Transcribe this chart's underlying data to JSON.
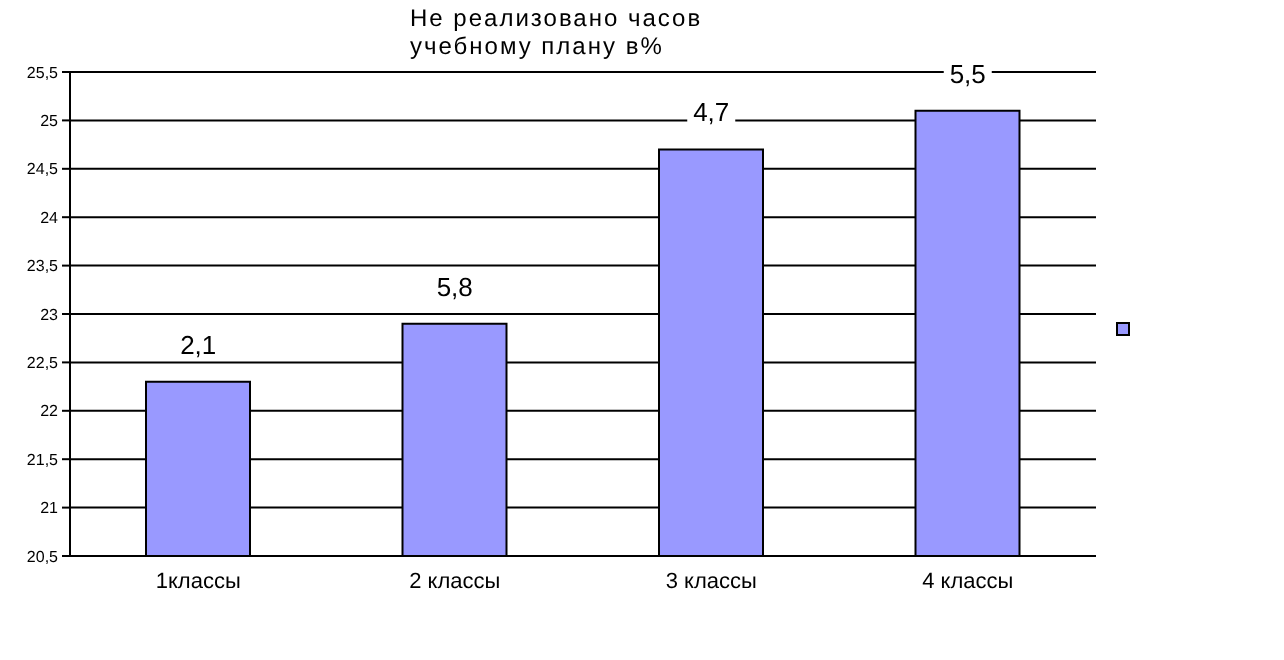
{
  "chart_data": {
    "type": "bar",
    "title": "Не реализовано часов\nучебному плану в%",
    "categories": [
      "1классы",
      "2 классы",
      "3 классы",
      "4 классы"
    ],
    "series": [
      {
        "color": "#9999ff",
        "values": [
          22.3,
          22.9,
          24.7,
          25.1
        ]
      }
    ],
    "annotations": [
      {
        "text": "2,1",
        "x": "1классы",
        "y": 22.3
      },
      {
        "text": "5,8",
        "x": "2 классы",
        "y": 22.9
      },
      {
        "text": "4,7",
        "x": "3 классы",
        "y": 24.7
      },
      {
        "text": "5,5",
        "x": "4 классы",
        "y": 25.1
      }
    ],
    "ylim": [
      20.5,
      25.5
    ],
    "yticks": [
      {
        "value": 20.5,
        "label": "20,5"
      },
      21,
      {
        "value": 21.5,
        "label": "21,5"
      },
      22,
      {
        "value": 22.5,
        "label": "22,5"
      },
      23,
      {
        "value": 23.5,
        "label": "23,5"
      },
      24,
      {
        "value": 24.5,
        "label": "24,5"
      },
      25,
      {
        "value": 25.5,
        "label": "25,5"
      }
    ],
    "grid": "y"
  }
}
